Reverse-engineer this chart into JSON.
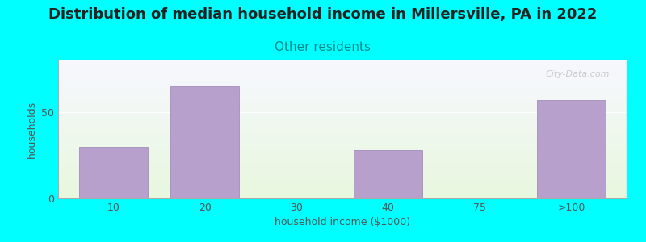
{
  "title": "Distribution of median household income in Millersville, PA in 2022",
  "subtitle": "Other residents",
  "xlabel": "household income ($1000)",
  "ylabel": "households",
  "background_color": "#00FFFF",
  "bar_color": "#b8a0cc",
  "bar_edgecolor": "#9980b8",
  "watermark": "City-Data.com",
  "categories": [
    "10",
    "20",
    "30",
    "40",
    "75",
    ">100"
  ],
  "values": [
    30,
    65,
    0,
    28,
    0,
    57
  ],
  "bar_positions": [
    0,
    1,
    2,
    3,
    4,
    5
  ],
  "tick_labels": [
    "10",
    "20",
    "30",
    "40",
    "75",
    ">100"
  ],
  "ylim": [
    0,
    80
  ],
  "yticks": [
    0,
    50
  ],
  "grid_y": 50,
  "title_fontsize": 13,
  "subtitle_fontsize": 11,
  "subtitle_color": "#008888",
  "axis_label_fontsize": 9,
  "tick_fontsize": 9,
  "ylabel_color": "#555555",
  "xlabel_color": "#555555",
  "xlim": [
    -0.6,
    5.6
  ]
}
